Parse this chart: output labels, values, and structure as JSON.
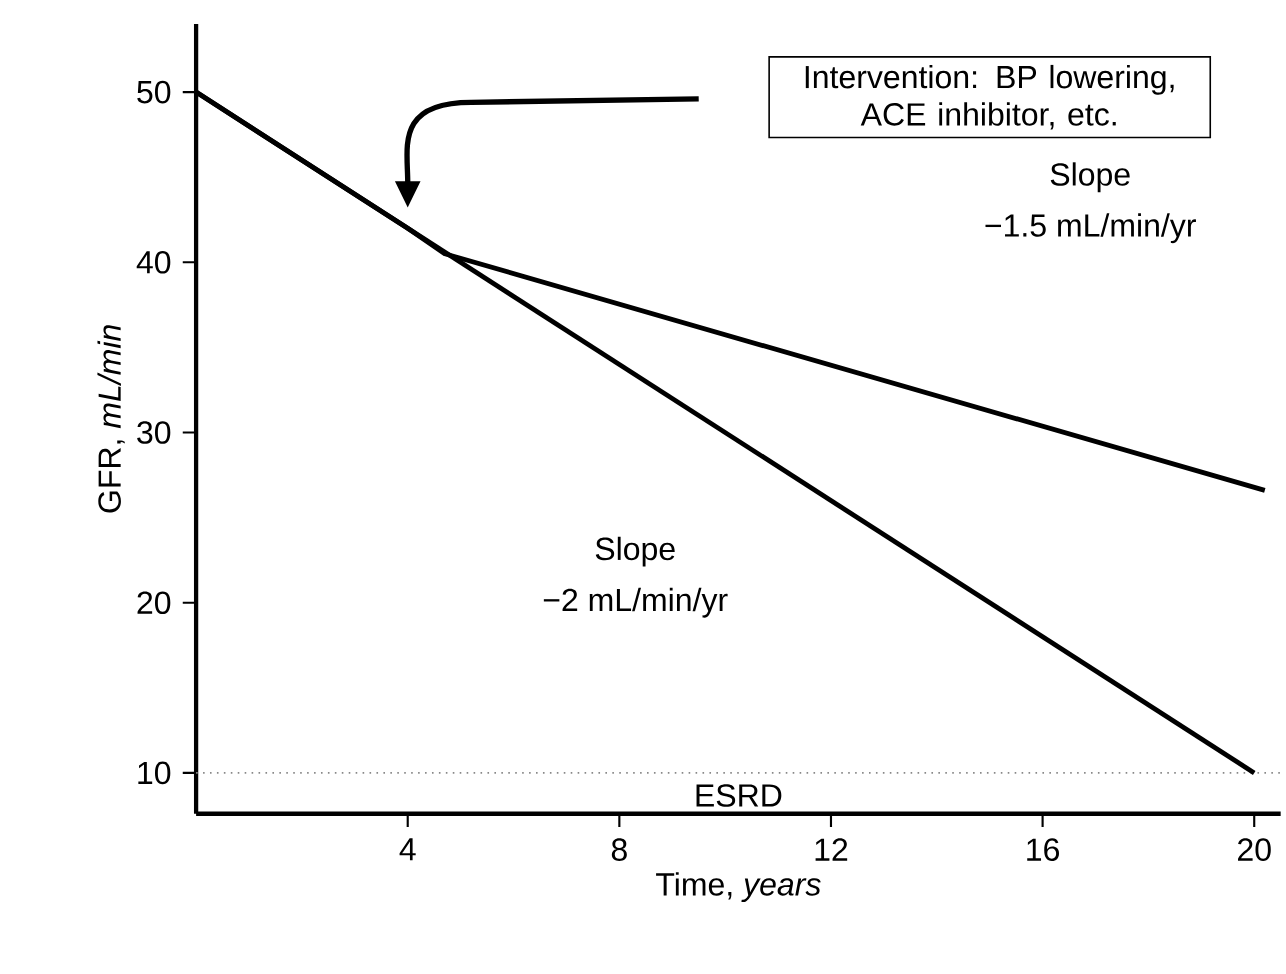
{
  "chart_data": {
    "type": "line",
    "xlabel": "Time, *years*",
    "ylabel": "GFR, *mL/min*",
    "series": [
      {
        "color": "#000000",
        "x": [
          0,
          20
        ],
        "values": [
          50,
          10
        ]
      },
      {
        "color": "#000000",
        "x": [
          0,
          4,
          4.7,
          20.2
        ],
        "values": [
          50,
          42,
          40.5,
          26.6
        ]
      }
    ],
    "xlim": [
      0,
      20.5
    ],
    "ylim": [
      7.6,
      54
    ],
    "xticks": [
      4,
      8,
      12,
      16,
      20
    ],
    "yticks": [
      10,
      20,
      30,
      40,
      50
    ],
    "ref_lines": [
      {
        "axis": "y",
        "value": 10,
        "label": "ESRD",
        "color": "#888888",
        "line_style": "dotted"
      }
    ],
    "annotations": [
      "Intervention: BP lowering, ACE inhibitor, etc.",
      "Slope",
      "−1.5 mL/min/yr",
      "Slope",
      "−2 mL/min/yr"
    ],
    "grid": false
  }
}
